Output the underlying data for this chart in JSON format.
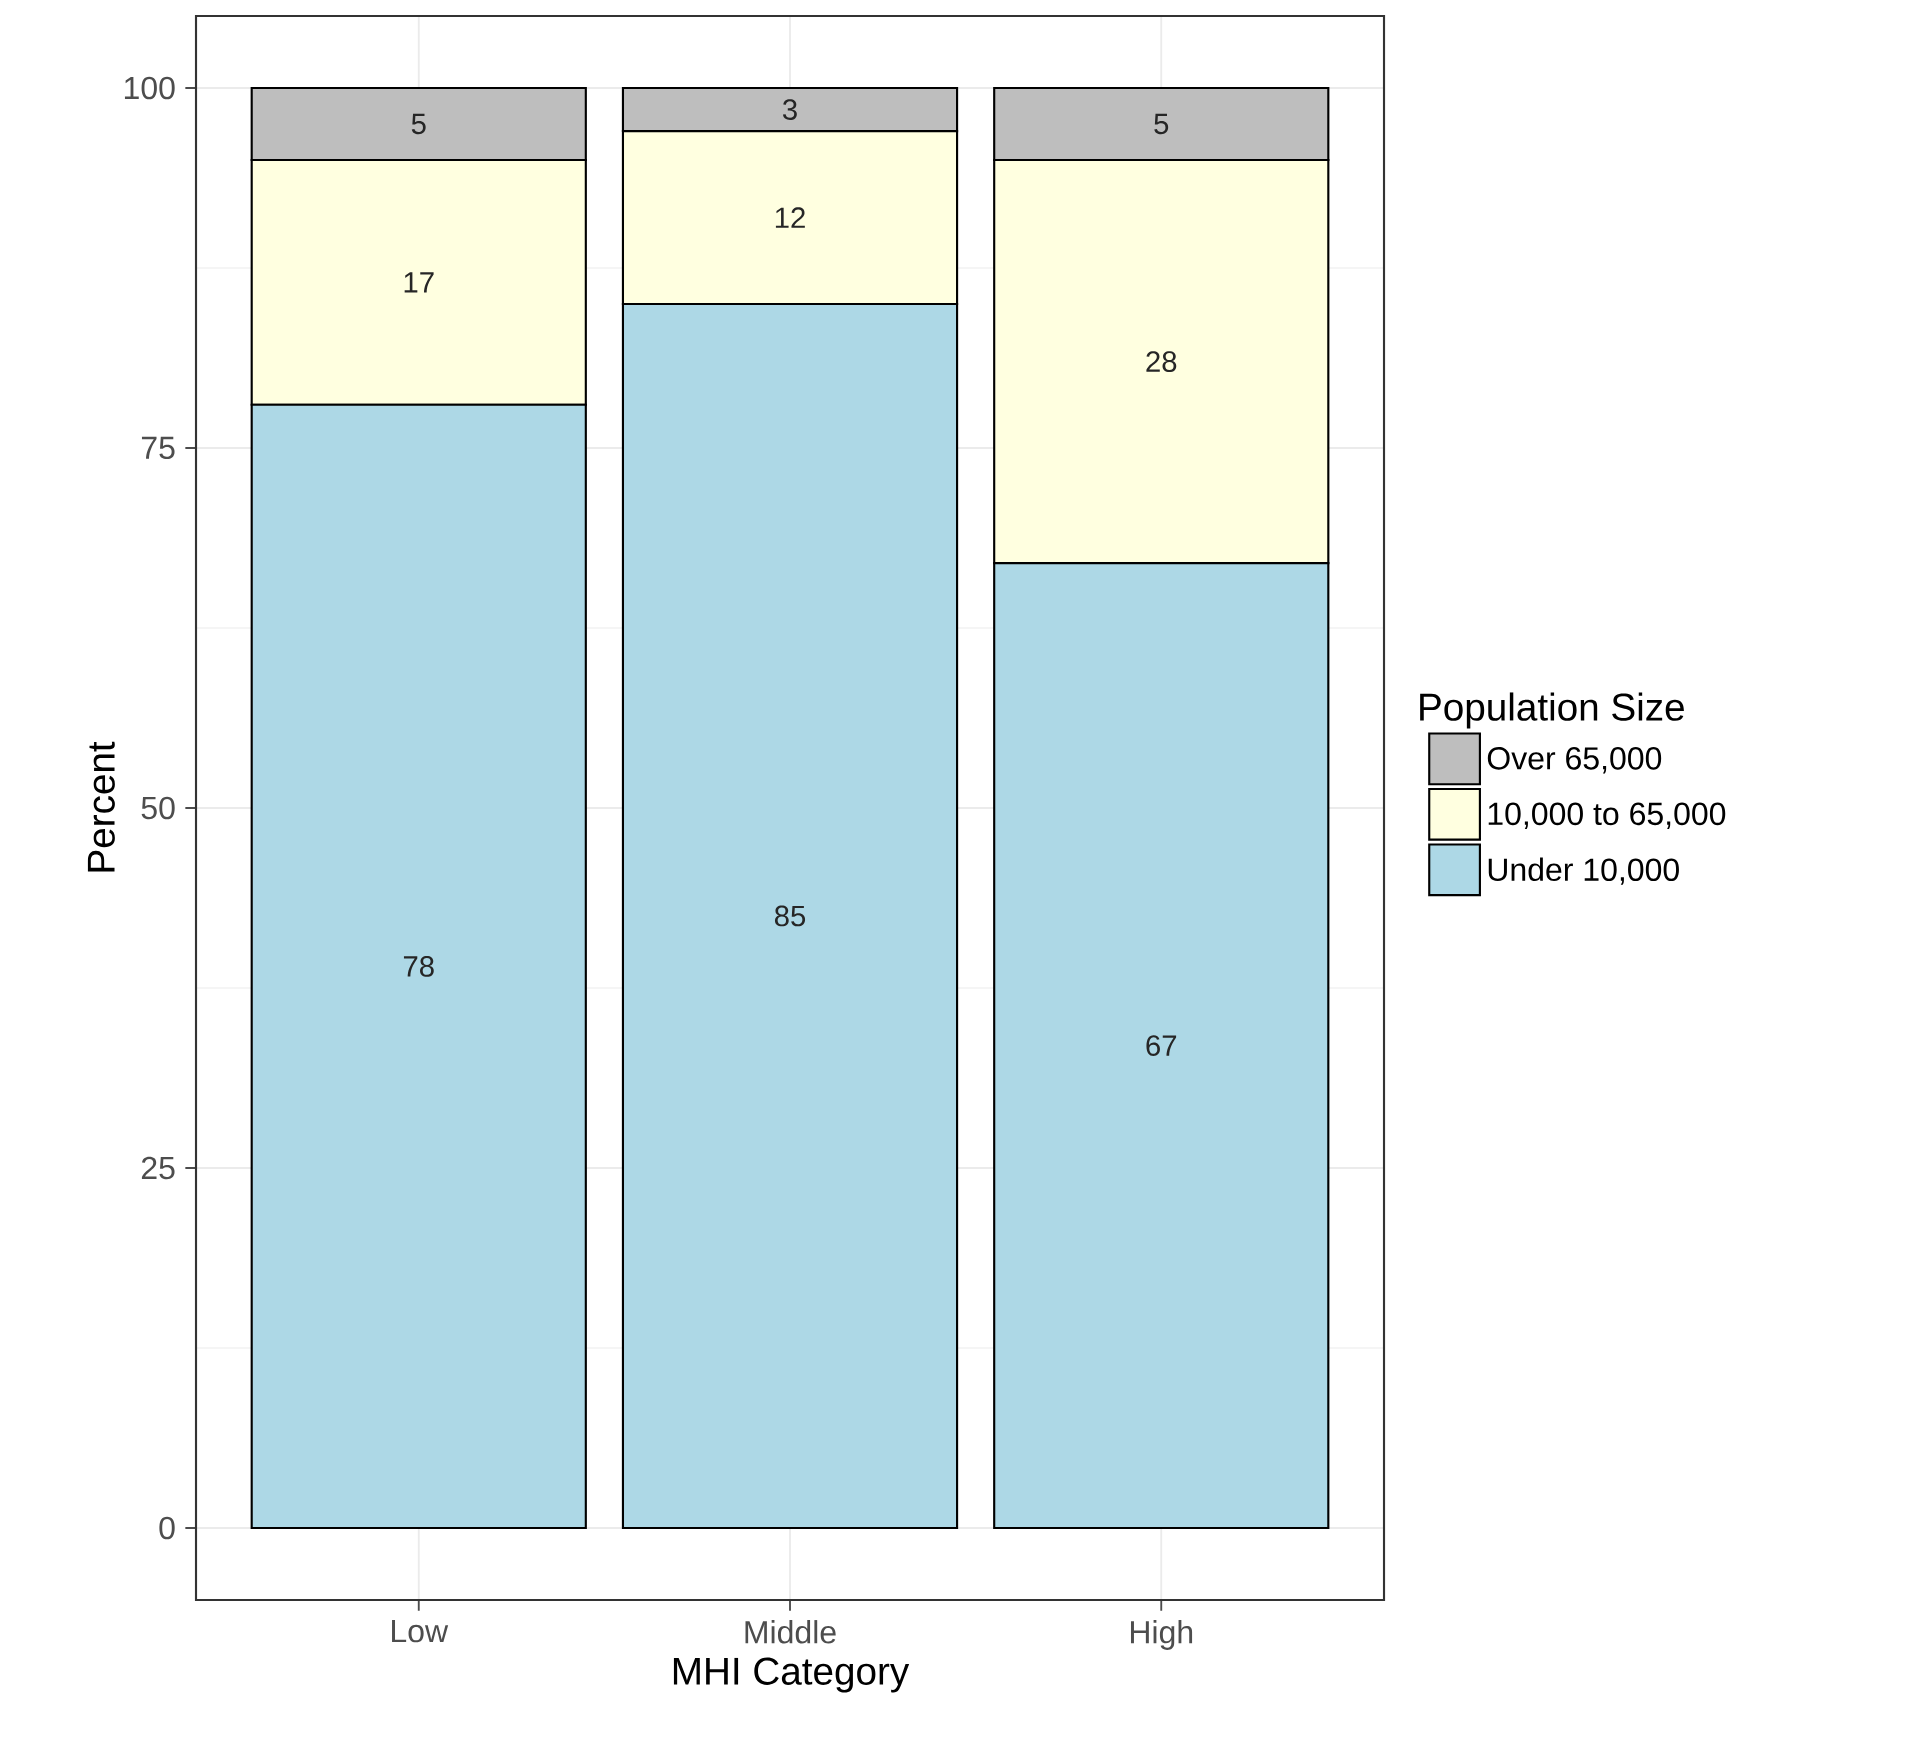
{
  "chart_data": {
    "type": "bar",
    "stacked": true,
    "xlabel": "MHI Category",
    "ylabel": "Percent",
    "legend_title": "Population Size",
    "categories": [
      "Low",
      "Middle",
      "High"
    ],
    "series": [
      {
        "name": "Under 10,000",
        "color": "#add8e6",
        "values": [
          78,
          85,
          67
        ]
      },
      {
        "name": "10,000 to 65,000",
        "color": "#ffffe0",
        "values": [
          17,
          12,
          28
        ]
      },
      {
        "name": "Over 65,000",
        "color": "#bebebe",
        "values": [
          5,
          3,
          5
        ]
      }
    ],
    "ylim": [
      -5,
      105
    ],
    "yticks": [
      0,
      25,
      50,
      75,
      100
    ],
    "grid": true,
    "legend": "right",
    "data_labels": true
  }
}
